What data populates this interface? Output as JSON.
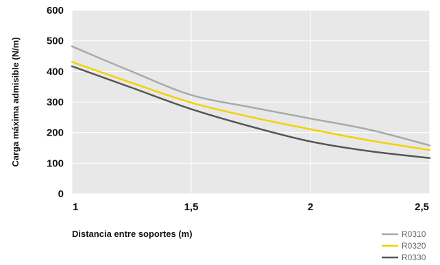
{
  "chart_data": {
    "type": "line",
    "title": "",
    "xlabel": "Distancia entre soportes (m)",
    "ylabel": "Carga máxima admisible (N/m)",
    "x_ticks": [
      "1",
      "1,5",
      "2",
      "2,5"
    ],
    "y_ticks": [
      "0",
      "100",
      "200",
      "300",
      "400",
      "500",
      "600"
    ],
    "xlim": [
      1,
      2.5
    ],
    "ylim": [
      0,
      600
    ],
    "grid": true,
    "legend_position": "bottom-right",
    "plot_background": "#e8e8e8",
    "grid_color": "#ffffff",
    "x": [
      1,
      1.25,
      1.5,
      1.75,
      2,
      2.25,
      2.5
    ],
    "series": [
      {
        "name": "R0310",
        "color": "#a9a9a9",
        "values": [
          482,
          400,
          323,
          283,
          246,
          209,
          158
        ]
      },
      {
        "name": "R0320",
        "color": "#f5d000",
        "values": [
          431,
          363,
          298,
          251,
          211,
          174,
          143
        ]
      },
      {
        "name": "R0330",
        "color": "#555555",
        "values": [
          417,
          347,
          277,
          220,
          171,
          139,
          117
        ]
      }
    ]
  }
}
